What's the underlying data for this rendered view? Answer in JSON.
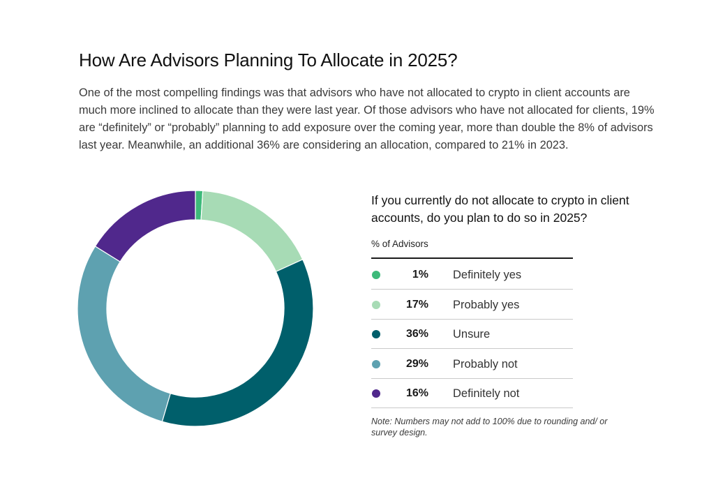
{
  "header": {
    "title": "How Are Advisors Planning To Allocate in 2025?",
    "intro": "One of the most compelling findings was that advisors who have not allocated to crypto in client accounts are much more inclined to allocate than they were last year. Of those advisors who have not allocated for clients, 19% are “definitely” or “probably” planning to add exposure over the coming year, more than double the 8% of advisors last year. Meanwhile, an additional 36% are considering an allocation, compared to 21% in 2023."
  },
  "chart_data": {
    "type": "pie",
    "style": "donut",
    "title": "If you currently do not allocate to crypto in client accounts, do you plan to do so in 2025?",
    "legend_header": "% of Advisors",
    "legend_placement": "right",
    "slices": [
      {
        "label": "Definitely yes",
        "value": 1,
        "display": "1%",
        "color": "#3dba7a"
      },
      {
        "label": "Probably yes",
        "value": 17,
        "display": "17%",
        "color": "#a7dbb5"
      },
      {
        "label": "Unsure",
        "value": 36,
        "display": "36%",
        "color": "#005f6b"
      },
      {
        "label": "Probably not",
        "value": 29,
        "display": "29%",
        "color": "#5ea1b0"
      },
      {
        "label": "Definitely not",
        "value": 16,
        "display": "16%",
        "color": "#50288c"
      }
    ],
    "note": "Note: Numbers may not add to 100% due to rounding and/ or survey design."
  }
}
